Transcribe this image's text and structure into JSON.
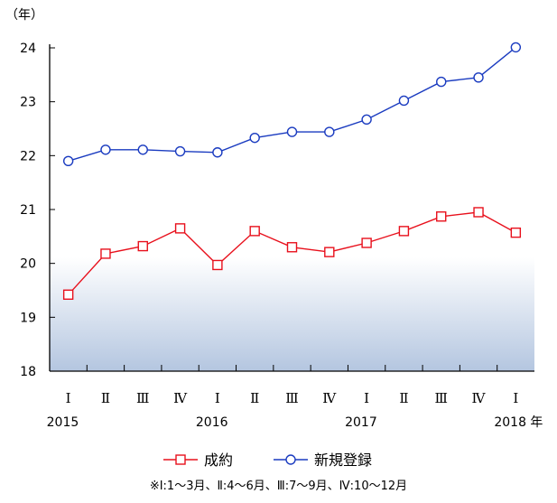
{
  "chart_data": {
    "type": "line",
    "y_unit_label": "（年）",
    "ylim": [
      18,
      24
    ],
    "yticks": [
      "18",
      "19",
      "20",
      "21",
      "22",
      "23",
      "24"
    ],
    "quarter_labels": [
      "Ⅰ",
      "Ⅱ",
      "Ⅲ",
      "Ⅳ",
      "Ⅰ",
      "Ⅱ",
      "Ⅲ",
      "Ⅳ",
      "Ⅰ",
      "Ⅱ",
      "Ⅲ",
      "Ⅳ",
      "Ⅰ"
    ],
    "year_labels": [
      {
        "index": 0,
        "label": "2015"
      },
      {
        "index": 4,
        "label": "2016"
      },
      {
        "index": 8,
        "label": "2017"
      },
      {
        "index": 12,
        "label": "2018 年"
      }
    ],
    "series": [
      {
        "name": "成約",
        "color": "#e8101c",
        "marker": "square",
        "values": [
          19.42,
          20.18,
          20.32,
          20.65,
          19.97,
          20.6,
          20.3,
          20.21,
          20.38,
          20.6,
          20.87,
          20.95,
          20.57
        ]
      },
      {
        "name": "新規登録",
        "color": "#1a3bc0",
        "marker": "circle",
        "values": [
          21.9,
          22.11,
          22.11,
          22.08,
          22.06,
          22.33,
          22.44,
          22.44,
          22.67,
          23.02,
          23.37,
          23.45,
          24.01
        ]
      }
    ],
    "legend_position": "bottom",
    "grid": false
  },
  "footnote": "※Ⅰ:1～3月、Ⅱ:4～6月、Ⅲ:7～9月、Ⅳ:10～12月"
}
